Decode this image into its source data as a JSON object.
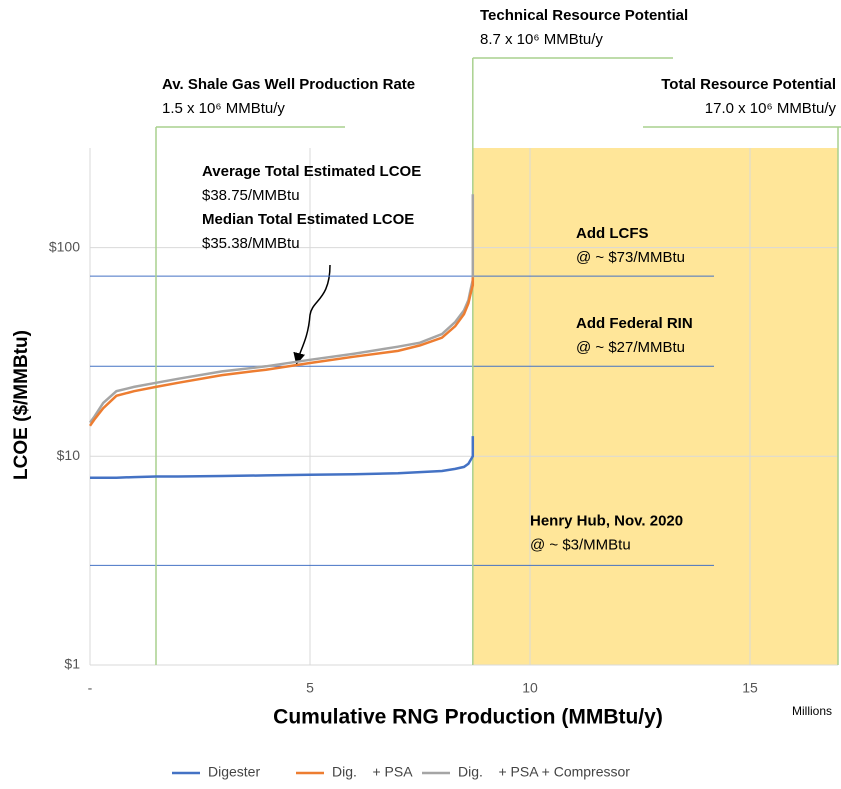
{
  "chart_data": {
    "type": "line",
    "ylabel": "LCOE ($/MMBtu)",
    "xlabel": "Cumulative RNG Production (MMBtu/y)",
    "xunit": "Millions",
    "log_y": true,
    "xlim": [
      0,
      17
    ],
    "ylim": [
      1,
      300
    ],
    "xticks": [
      {
        "value": 0,
        "label": "-"
      },
      5,
      10,
      15
    ],
    "yticks": [
      {
        "value": 1,
        "label": "$1"
      },
      {
        "value": 10,
        "label": "$10"
      },
      {
        "value": 100,
        "label": "$100"
      }
    ],
    "x": [
      0,
      0.1,
      0.3,
      0.6,
      1,
      1.5,
      2,
      3,
      4,
      5,
      6,
      7,
      7.5,
      8,
      8.3,
      8.5,
      8.6,
      8.65,
      8.7,
      8.7
    ],
    "series": [
      {
        "name": "Digester",
        "color": "#4472c4",
        "values": [
          7.9,
          7.9,
          7.9,
          7.9,
          7.95,
          8,
          8,
          8.05,
          8.1,
          8.15,
          8.2,
          8.3,
          8.4,
          8.5,
          8.7,
          8.9,
          9.2,
          9.6,
          10,
          12.5
        ]
      },
      {
        "name": "Dig.    + PSA",
        "color": "#ed7d31",
        "values": [
          14,
          15,
          17,
          19.5,
          20.5,
          21.5,
          22.5,
          24.5,
          26,
          28,
          30,
          32,
          34,
          37,
          42,
          48,
          54,
          60,
          66,
          72
        ]
      },
      {
        "name": "Dig.    + PSA + Compressor",
        "color": "#a5a5a5",
        "values": [
          14.5,
          15.5,
          18,
          20.5,
          21.5,
          22.5,
          23.5,
          25.5,
          27,
          29,
          31,
          33.5,
          35,
          38.5,
          44,
          50,
          56,
          63,
          70,
          180
        ]
      }
    ],
    "shade": {
      "from": 8.7,
      "to": 17.0,
      "color": "#ffe699"
    },
    "vlines": [
      {
        "value": 1.5,
        "label": "Av. Shale Gas Well Production Rate",
        "sublabel": "1.5 x 10⁶ MMBtu/y",
        "color": "#a9d18e"
      },
      {
        "value": 8.7,
        "label": "Technical Resource Potential",
        "sublabel": "8.7 x 10⁶ MMBtu/y",
        "color": "#a9d18e"
      },
      {
        "value": 17.0,
        "label": "Total Resource Potential",
        "sublabel": "17.0 x 10⁶ MMBtu/y",
        "color": "#a9d18e"
      }
    ],
    "hlines": [
      {
        "value": 73,
        "label": "Add LCFS",
        "sublabel": "@ ~ $73/MMBtu",
        "color": "#4472c4"
      },
      {
        "value": 27,
        "label": "Add Federal RIN",
        "sublabel": "@ ~ $27/MMBtu",
        "color": "#4472c4"
      },
      {
        "value": 3,
        "label": "Henry Hub, Nov. 2020",
        "sublabel": "@ ~ $3/MMBtu",
        "color": "#4472c4"
      }
    ],
    "notes": [
      {
        "label": "Average Total Estimated LCOE",
        "sublabel": "$38.75/MMBtu"
      },
      {
        "label": "Median Total Estimated LCOE",
        "sublabel": "$35.38/MMBtu"
      }
    ]
  }
}
